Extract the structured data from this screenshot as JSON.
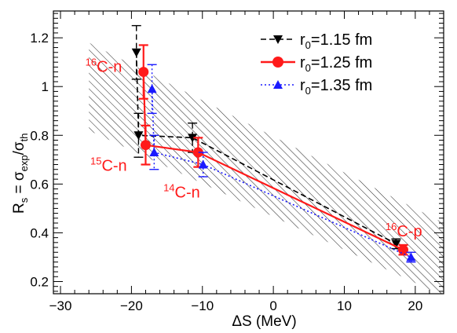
{
  "chart_data": {
    "type": "scatter",
    "xlabel": "ΔS (MeV)",
    "ylabel": {
      "prefix": "R",
      "prefix_sub": "s",
      "eq": " = σ",
      "num_sub": "exp",
      "slash": "/σ",
      "den_sub": "th"
    },
    "xlim": [
      -31,
      24
    ],
    "ylim": [
      0.15,
      1.31
    ],
    "xticks": [
      -30,
      -20,
      -10,
      0,
      10,
      20
    ],
    "yticks": [
      0.2,
      0.4,
      0.6,
      0.8,
      1.0,
      1.2
    ],
    "xtick_labels": [
      "−30",
      "−20",
      "−10",
      "0",
      "10",
      "20"
    ],
    "ytick_labels": [
      "0.2",
      "0.4",
      "0.6",
      "0.8",
      "1",
      "1.2"
    ],
    "band": {
      "description_hatch": true,
      "upper": [
        [
          -26,
          1.18
        ],
        [
          24,
          0.44
        ]
      ],
      "lower": [
        [
          -26,
          0.82
        ],
        [
          24,
          0.14
        ]
      ]
    },
    "series": [
      {
        "name": {
          "base": "r",
          "sub": "0",
          "rest": "=1.15 fm"
        },
        "color": "#000000",
        "marker": "triangle-down",
        "line": "dashed",
        "points": [
          {
            "x": -19.3,
            "y": 1.14,
            "yerr": 0.11,
            "group": "16C-n"
          },
          {
            "x": -19.0,
            "y": 0.8,
            "yerr": 0.09,
            "group": "15C-n"
          },
          {
            "x": -11.4,
            "y": 0.79,
            "yerr": 0.06,
            "group": "14C-n"
          },
          {
            "x": 17.3,
            "y": 0.355,
            "yerr": 0.02,
            "group": "16C-p"
          }
        ]
      },
      {
        "name": {
          "base": "r",
          "sub": "0",
          "rest": "=1.25 fm"
        },
        "color": "#ff1a1a",
        "marker": "circle",
        "line": "solid",
        "points": [
          {
            "x": -18.3,
            "y": 1.06,
            "yerr": 0.11,
            "group": "16C-n"
          },
          {
            "x": -18.0,
            "y": 0.76,
            "yerr": 0.08,
            "group": "15C-n"
          },
          {
            "x": -10.6,
            "y": 0.73,
            "yerr": 0.06,
            "group": "14C-n"
          },
          {
            "x": 18.3,
            "y": 0.33,
            "yerr": 0.02,
            "group": "16C-p"
          }
        ]
      },
      {
        "name": {
          "base": "r",
          "sub": "0",
          "rest": "=1.35 fm"
        },
        "color": "#1a1aff",
        "marker": "triangle-up",
        "line": "dotted",
        "points": [
          {
            "x": -17.1,
            "y": 0.99,
            "yerr": 0.1,
            "group": "16C-n"
          },
          {
            "x": -16.8,
            "y": 0.73,
            "yerr": 0.07,
            "group": "15C-n"
          },
          {
            "x": -9.9,
            "y": 0.68,
            "yerr": 0.05,
            "group": "14C-n"
          },
          {
            "x": 19.4,
            "y": 0.3,
            "yerr": 0.02,
            "group": "16C-p"
          }
        ]
      }
    ],
    "annotations": [
      {
        "sup": "16",
        "text": "C-n",
        "x": -26.5,
        "y": 1.06
      },
      {
        "sup": "15",
        "text": "C-n",
        "x": -25.8,
        "y": 0.655
      },
      {
        "sup": "14",
        "text": "C-n",
        "x": -15.5,
        "y": 0.545
      },
      {
        "sup": "16",
        "text": "C-p",
        "x": 15.8,
        "y": 0.385
      }
    ],
    "legend_position": "top-right",
    "grid": false
  }
}
